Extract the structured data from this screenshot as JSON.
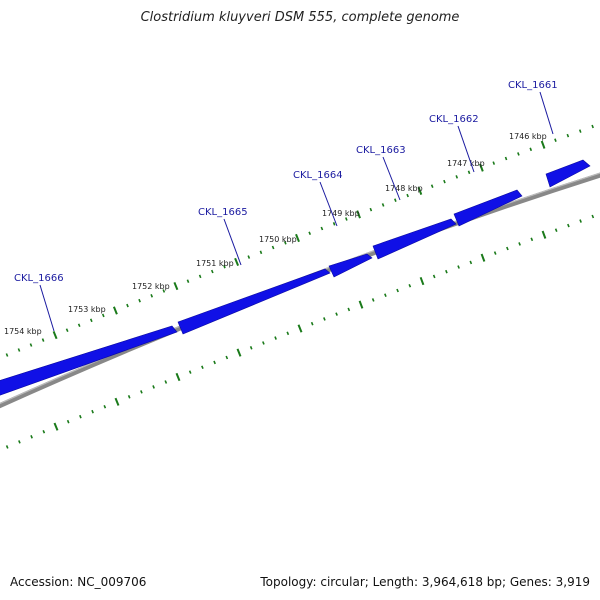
{
  "map": {
    "title": "Clostridium kluyveri DSM 555, complete genome",
    "accession": "Accession: NC_009706",
    "stats": "Topology: circular; Length: 3,964,618 bp; Genes: 3,919"
  },
  "colors": {
    "gene": "#1010e6",
    "gene_label": "#1a1aa0",
    "backbone": "#888888",
    "tick": "#1a7a1a"
  },
  "ticks": [
    {
      "label": "1746 kbp"
    },
    {
      "label": "1747 kbp"
    },
    {
      "label": "1748 kbp"
    },
    {
      "label": "1749 kbp"
    },
    {
      "label": "1750 kbp"
    },
    {
      "label": "1751 kbp"
    },
    {
      "label": "1752 kbp"
    },
    {
      "label": "1753 kbp"
    },
    {
      "label": "1754 kbp"
    }
  ],
  "genes": [
    {
      "name": "CKL_1661"
    },
    {
      "name": "CKL_1662"
    },
    {
      "name": "CKL_1663"
    },
    {
      "name": "CKL_1664"
    },
    {
      "name": "CKL_1665"
    },
    {
      "name": "CKL_1666"
    }
  ]
}
